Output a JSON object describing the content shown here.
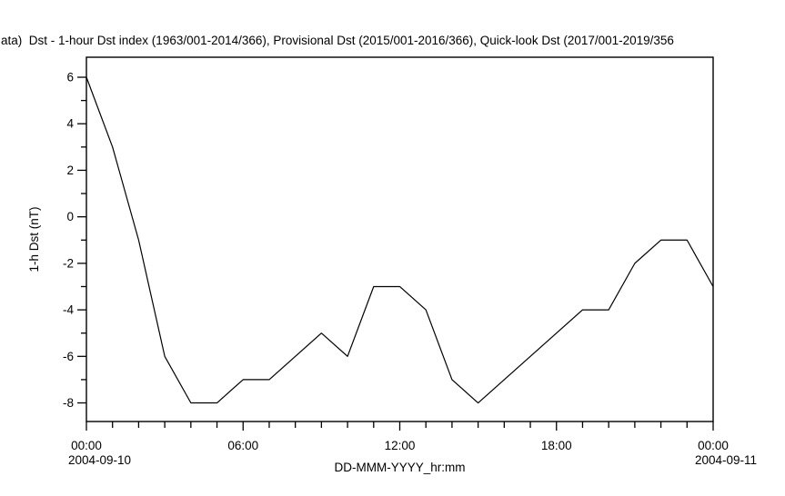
{
  "chart_data": {
    "type": "line",
    "title": "ata)  Dst - 1-hour Dst index (1963/001-2014/366), Provisional Dst (2015/001-2016/366), Quick-look Dst (2017/001-2019/356",
    "xlabel": "DD-MMM-YYYY_hr:mm",
    "ylabel": "1-h Dst (nT)",
    "series": [
      {
        "name": "1-h Dst",
        "x_hours": [
          0,
          1,
          2,
          3,
          4,
          5,
          6,
          7,
          8,
          9,
          10,
          11,
          12,
          13,
          14,
          15,
          16,
          17,
          18,
          19,
          20,
          21,
          22,
          23,
          24
        ],
        "values": [
          6,
          3,
          -1,
          -6,
          -8,
          -8,
          -7,
          -7,
          -6,
          -5,
          -6,
          -3,
          -3,
          -4,
          -7,
          -8,
          -7,
          -6,
          -5,
          -4,
          -4,
          -2,
          -1,
          -1,
          -3
        ]
      }
    ],
    "x_major_ticks": [
      {
        "hour": 0,
        "label": "00:00",
        "sublabel": "2004-09-10"
      },
      {
        "hour": 6,
        "label": "06:00"
      },
      {
        "hour": 12,
        "label": "12:00"
      },
      {
        "hour": 18,
        "label": "18:00"
      },
      {
        "hour": 24,
        "label": "00:00",
        "sublabel": "2004-09-11"
      }
    ],
    "x_minor_tick_every_hours": 1,
    "y_major_ticks": [
      6,
      4,
      2,
      0,
      -2,
      -4,
      -6,
      -8
    ],
    "y_minor_ticks": [
      5,
      3,
      1,
      -1,
      -3,
      -5,
      -7
    ],
    "xlim_hours": [
      0,
      24
    ],
    "ylim": [
      -8.8,
      6.86
    ],
    "grid": false,
    "legend": "none",
    "line_color": "#000000",
    "background": "#ffffff"
  }
}
